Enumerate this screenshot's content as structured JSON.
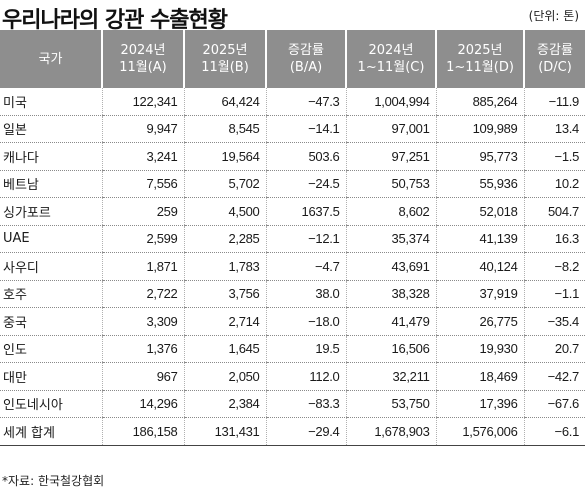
{
  "title": "우리나라의 강관 수출현황",
  "unit": "(단위: 톤)",
  "headers": [
    [
      "국가"
    ],
    [
      "2024년",
      "11월(A)"
    ],
    [
      "2025년",
      "11월(B)"
    ],
    [
      "증감률",
      "(B/A)"
    ],
    [
      "2024년",
      "1~11월(C)"
    ],
    [
      "2025년",
      "1~11월(D)"
    ],
    [
      "증감률",
      "(D/C)"
    ]
  ],
  "rows": [
    [
      "미국",
      "122,341",
      "64,424",
      "−47.3",
      "1,004,994",
      "885,264",
      "−11.9"
    ],
    [
      "일본",
      "9,947",
      "8,545",
      "−14.1",
      "97,001",
      "109,989",
      "13.4"
    ],
    [
      "캐나다",
      "3,241",
      "19,564",
      "503.6",
      "97,251",
      "95,773",
      "−1.5"
    ],
    [
      "베트남",
      "7,556",
      "5,702",
      "−24.5",
      "50,753",
      "55,936",
      "10.2"
    ],
    [
      "싱가포르",
      "259",
      "4,500",
      "1637.5",
      "8,602",
      "52,018",
      "504.7"
    ],
    [
      "UAE",
      "2,599",
      "2,285",
      "−12.1",
      "35,374",
      "41,139",
      "16.3"
    ],
    [
      "사우디",
      "1,871",
      "1,783",
      "−4.7",
      "43,691",
      "40,124",
      "−8.2"
    ],
    [
      "호주",
      "2,722",
      "3,756",
      "38.0",
      "38,328",
      "37,919",
      "−1.1"
    ],
    [
      "중국",
      "3,309",
      "2,714",
      "−18.0",
      "41,479",
      "26,775",
      "−35.4"
    ],
    [
      "인도",
      "1,376",
      "1,645",
      "19.5",
      "16,506",
      "19,930",
      "20.7"
    ],
    [
      "대만",
      "967",
      "2,050",
      "112.0",
      "32,211",
      "18,469",
      "−42.7"
    ],
    [
      "인도네시아",
      "14,296",
      "2,384",
      "−83.3",
      "53,750",
      "17,396",
      "−67.6"
    ],
    [
      "세계 합계",
      "186,158",
      "131,431",
      "−29.4",
      "1,678,903",
      "1,576,006",
      "−6.1"
    ]
  ],
  "source": "*자료: 한국철강협회",
  "colors": {
    "header_bg": "#8e8e8e",
    "header_text": "#ffffff"
  }
}
